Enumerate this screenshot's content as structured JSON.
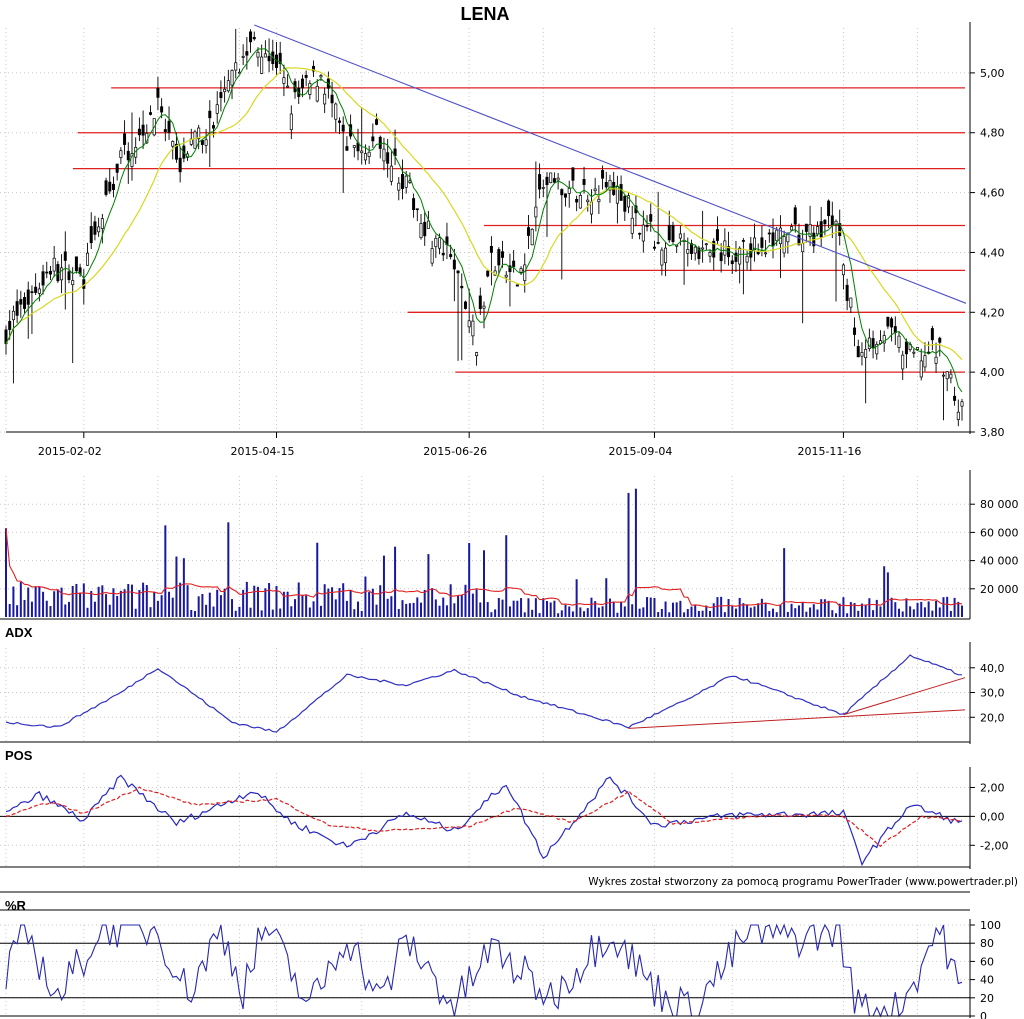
{
  "chart_data": [
    {
      "panel": "price",
      "type": "candlestick",
      "title": "LENA",
      "ylim": [
        3.8,
        5.15
      ],
      "y_ticks": [
        "5,00",
        "4,80",
        "4,60",
        "4,40",
        "4,20",
        "4,00",
        "3,80"
      ],
      "x_ticks": [
        "2015-02-02",
        "2015-04-15",
        "2015-06-26",
        "2015-09-04",
        "2015-11-16"
      ],
      "grid": true,
      "key_points": [
        {
          "date": "2015-01-02",
          "close": 4.14
        },
        {
          "date": "2015-01-20",
          "close": 4.35
        },
        {
          "date": "2015-02-02",
          "close": 4.32
        },
        {
          "date": "2015-02-16",
          "close": 4.72
        },
        {
          "date": "2015-03-02",
          "close": 4.88
        },
        {
          "date": "2015-03-09",
          "close": 4.69
        },
        {
          "date": "2015-03-23",
          "close": 4.84
        },
        {
          "date": "2015-04-07",
          "close": 5.12
        },
        {
          "date": "2015-04-15",
          "close": 5.04
        },
        {
          "date": "2015-04-21",
          "close": 4.89
        },
        {
          "date": "2015-05-01",
          "close": 5.0
        },
        {
          "date": "2015-05-12",
          "close": 4.74
        },
        {
          "date": "2015-05-25",
          "close": 4.79
        },
        {
          "date": "2015-06-03",
          "close": 4.62
        },
        {
          "date": "2015-06-12",
          "close": 4.45
        },
        {
          "date": "2015-06-22",
          "close": 4.35
        },
        {
          "date": "2015-06-30",
          "close": 4.1
        },
        {
          "date": "2015-07-06",
          "close": 4.38
        },
        {
          "date": "2015-07-15",
          "close": 4.3
        },
        {
          "date": "2015-07-24",
          "close": 4.63
        },
        {
          "date": "2015-08-05",
          "close": 4.6
        },
        {
          "date": "2015-08-19",
          "close": 4.62
        },
        {
          "date": "2015-09-04",
          "close": 4.45
        },
        {
          "date": "2015-09-18",
          "close": 4.42
        },
        {
          "date": "2015-10-05",
          "close": 4.39
        },
        {
          "date": "2015-10-20",
          "close": 4.44
        },
        {
          "date": "2015-11-05",
          "close": 4.46
        },
        {
          "date": "2015-11-12",
          "close": 4.52
        },
        {
          "date": "2015-11-16",
          "close": 4.33
        },
        {
          "date": "2015-11-20",
          "close": 4.08
        },
        {
          "date": "2015-12-01",
          "close": 4.14
        },
        {
          "date": "2015-12-10",
          "close": 4.05
        },
        {
          "date": "2015-12-22",
          "close": 4.07
        },
        {
          "date": "2015-12-30",
          "close": 3.86
        }
      ],
      "horizontal_lines": [
        4.95,
        4.8,
        4.68,
        4.49,
        4.34,
        4.2,
        4.0
      ],
      "trendline": {
        "from": {
          "date": "2015-04-07",
          "value": 5.16
        },
        "to": {
          "date": "2015-12-30",
          "value": 4.23
        }
      },
      "ma_color_fast": "#008000",
      "ma_color_slow": "#d8d820",
      "level_color": "#e02020",
      "trend_color": "#5050c8"
    },
    {
      "panel": "volume",
      "type": "bar",
      "ylim": [
        0,
        100000
      ],
      "y_ticks": [
        "80 000",
        "60 000",
        "40 000",
        "20 000"
      ],
      "spikes": [
        {
          "date": "2015-03-04",
          "value": 65000
        },
        {
          "date": "2015-07-10",
          "value": 58000
        },
        {
          "date": "2015-08-26",
          "value": 88000
        },
        {
          "date": "2015-08-29",
          "value": 91000
        },
        {
          "date": "2015-12-01",
          "value": 36000
        }
      ],
      "typical_value": 10000,
      "bar_color": "#1818a0",
      "avg_color": "#e02020"
    },
    {
      "panel": "adx",
      "type": "line",
      "label": "ADX",
      "ylim": [
        10,
        48
      ],
      "y_ticks": [
        "40,0",
        "30,0",
        "20,0"
      ],
      "key_points": [
        {
          "date": "2015-01-02",
          "value": 18
        },
        {
          "date": "2015-01-22",
          "value": 16
        },
        {
          "date": "2015-02-16",
          "value": 30
        },
        {
          "date": "2015-03-02",
          "value": 40
        },
        {
          "date": "2015-03-30",
          "value": 18
        },
        {
          "date": "2015-04-15",
          "value": 14
        },
        {
          "date": "2015-05-12",
          "value": 37
        },
        {
          "date": "2015-06-03",
          "value": 33
        },
        {
          "date": "2015-06-22",
          "value": 39
        },
        {
          "date": "2015-07-15",
          "value": 29
        },
        {
          "date": "2015-08-26",
          "value": 16
        },
        {
          "date": "2015-09-18",
          "value": 28
        },
        {
          "date": "2015-10-05",
          "value": 37
        },
        {
          "date": "2015-11-16",
          "value": 21
        },
        {
          "date": "2015-12-10",
          "value": 45
        },
        {
          "date": "2015-12-30",
          "value": 37
        }
      ],
      "trend_lines": [
        {
          "from": {
            "date": "2015-08-26",
            "value": 15.5
          },
          "to": {
            "date": "2015-12-30",
            "value": 23
          }
        },
        {
          "from": {
            "date": "2015-11-16",
            "value": 21
          },
          "to": {
            "date": "2015-12-30",
            "value": 36
          }
        }
      ],
      "line_color": "#3030c0",
      "trend_color": "#c02020"
    },
    {
      "panel": "pos",
      "type": "line",
      "label": "POS",
      "ylim": [
        -3.5,
        3
      ],
      "y_ticks": [
        "2,00",
        "0,00",
        "-2,00"
      ],
      "series": [
        {
          "line": "solid",
          "color": "#2828c0",
          "key_points": [
            {
              "date": "2015-01-02",
              "value": 0.2
            },
            {
              "date": "2015-01-15",
              "value": 1.5
            },
            {
              "date": "2015-02-02",
              "value": -0.3
            },
            {
              "date": "2015-02-16",
              "value": 2.7
            },
            {
              "date": "2015-03-09",
              "value": -0.5
            },
            {
              "date": "2015-04-07",
              "value": 1.8
            },
            {
              "date": "2015-04-21",
              "value": -0.4
            },
            {
              "date": "2015-05-12",
              "value": -2.1
            },
            {
              "date": "2015-06-03",
              "value": 0.2
            },
            {
              "date": "2015-06-22",
              "value": -1.0
            },
            {
              "date": "2015-07-10",
              "value": 2.3
            },
            {
              "date": "2015-07-24",
              "value": -2.8
            },
            {
              "date": "2015-08-19",
              "value": 2.7
            },
            {
              "date": "2015-09-04",
              "value": -0.6
            },
            {
              "date": "2015-10-05",
              "value": 0.1
            },
            {
              "date": "2015-11-16",
              "value": 0.2
            },
            {
              "date": "2015-11-23",
              "value": -3.1
            },
            {
              "date": "2015-12-10",
              "value": 0.8
            },
            {
              "date": "2015-12-30",
              "value": -0.5
            }
          ]
        },
        {
          "line": "dashed",
          "color": "#e02020",
          "key_points": [
            {
              "date": "2015-01-02",
              "value": 0.0
            },
            {
              "date": "2015-01-20",
              "value": 1.0
            },
            {
              "date": "2015-02-02",
              "value": 0.2
            },
            {
              "date": "2015-02-23",
              "value": 2.0
            },
            {
              "date": "2015-03-16",
              "value": 0.8
            },
            {
              "date": "2015-04-15",
              "value": 1.2
            },
            {
              "date": "2015-05-05",
              "value": -0.6
            },
            {
              "date": "2015-05-25",
              "value": -1.0
            },
            {
              "date": "2015-06-26",
              "value": -0.7
            },
            {
              "date": "2015-07-15",
              "value": 0.6
            },
            {
              "date": "2015-08-05",
              "value": -0.4
            },
            {
              "date": "2015-08-26",
              "value": 1.7
            },
            {
              "date": "2015-09-11",
              "value": -0.5
            },
            {
              "date": "2015-10-20",
              "value": 0.1
            },
            {
              "date": "2015-11-16",
              "value": 0.0
            },
            {
              "date": "2015-11-30",
              "value": -2.0
            },
            {
              "date": "2015-12-15",
              "value": 0.0
            },
            {
              "date": "2015-12-30",
              "value": -0.3
            }
          ]
        }
      ],
      "credit": "Wykres został stworzony za pomocą programu PowerTrader (www.powertrader.pl)"
    },
    {
      "panel": "williams_r",
      "type": "line",
      "label": "%R",
      "ylim": [
        0,
        100
      ],
      "y_ticks": [
        "100",
        "80",
        "60",
        "40",
        "20",
        "0"
      ],
      "ref_lines": [
        80,
        20
      ],
      "line_color": "#2828b0",
      "key_points": [
        {
          "date": "2015-01-02",
          "value": 40
        },
        {
          "date": "2015-01-10",
          "value": 95
        },
        {
          "date": "2015-01-22",
          "value": 20
        },
        {
          "date": "2015-02-09",
          "value": 98
        },
        {
          "date": "2015-03-02",
          "value": 95
        },
        {
          "date": "2015-03-12",
          "value": 25
        },
        {
          "date": "2015-03-25",
          "value": 95
        },
        {
          "date": "2015-04-02",
          "value": 30
        },
        {
          "date": "2015-04-10",
          "value": 100
        },
        {
          "date": "2015-04-28",
          "value": 10
        },
        {
          "date": "2015-05-12",
          "value": 90
        },
        {
          "date": "2015-05-25",
          "value": 15
        },
        {
          "date": "2015-06-03",
          "value": 85
        },
        {
          "date": "2015-06-22",
          "value": 10
        },
        {
          "date": "2015-07-06",
          "value": 75
        },
        {
          "date": "2015-07-28",
          "value": 20
        },
        {
          "date": "2015-08-19",
          "value": 95
        },
        {
          "date": "2015-09-04",
          "value": 30
        },
        {
          "date": "2015-09-18",
          "value": 5
        },
        {
          "date": "2015-10-12",
          "value": 95
        },
        {
          "date": "2015-11-02",
          "value": 85
        },
        {
          "date": "2015-11-12",
          "value": 98
        },
        {
          "date": "2015-11-20",
          "value": 10
        },
        {
          "date": "2015-12-07",
          "value": 5
        },
        {
          "date": "2015-12-22",
          "value": 100
        },
        {
          "date": "2015-12-30",
          "value": 20
        }
      ]
    }
  ]
}
